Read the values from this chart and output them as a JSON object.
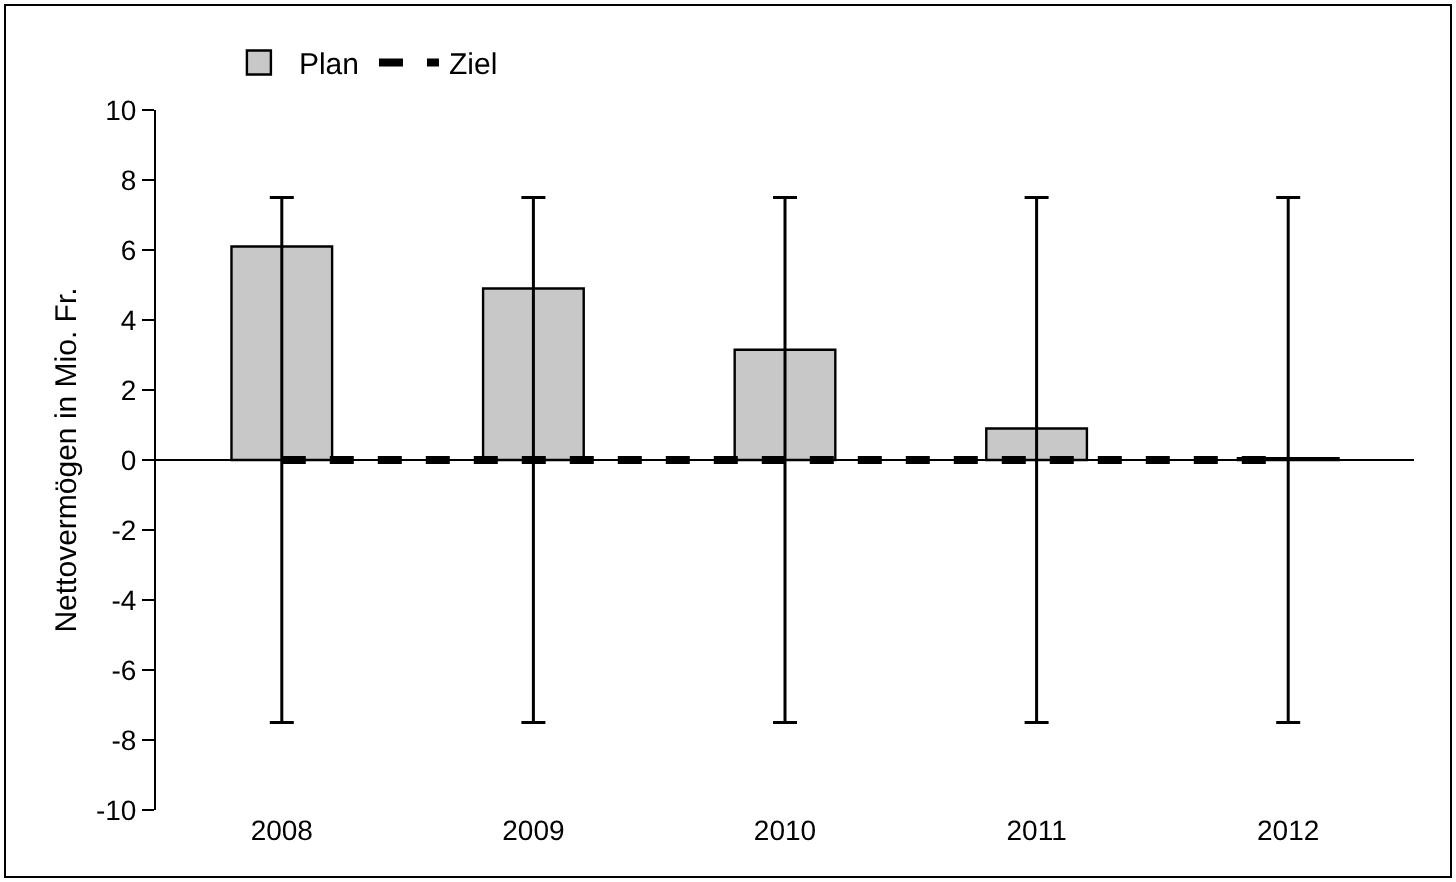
{
  "chart_data": {
    "type": "bar",
    "ylabel": "Nettovermögen in Mio. Fr.",
    "categories": [
      "2008",
      "2009",
      "2010",
      "2011",
      "2012"
    ],
    "series": [
      {
        "name": "Plan",
        "color": "#c8c8c8",
        "values": [
          6.1,
          4.9,
          3.15,
          0.9,
          0.05
        ],
        "errors": [
          [
            -7.5,
            7.5
          ],
          [
            -7.5,
            7.5
          ],
          [
            -7.5,
            7.5
          ],
          [
            -7.5,
            7.5
          ],
          [
            -7.5,
            7.5
          ]
        ]
      },
      {
        "name": "Ziel",
        "type": "line",
        "color": "#000000",
        "line_style": "dashed",
        "values": [
          0,
          0,
          0,
          0,
          0
        ]
      }
    ],
    "ylim": [
      -10,
      10
    ],
    "yticks": [
      -10,
      -8,
      -6,
      -4,
      -2,
      0,
      2,
      4,
      6,
      8,
      10
    ],
    "grid": false,
    "legend": "top left",
    "marker": "none"
  }
}
